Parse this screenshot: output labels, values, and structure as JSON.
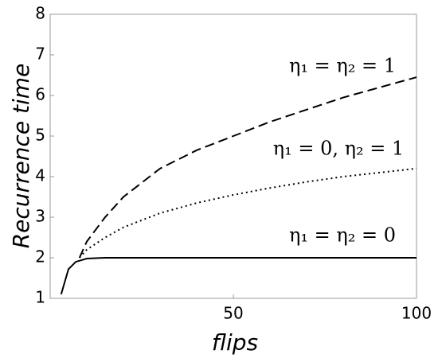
{
  "chart_data": {
    "type": "line",
    "x_label": "flips",
    "y_label": "Recurrence time",
    "xlim": [
      0,
      100
    ],
    "ylim": [
      1,
      8
    ],
    "xticks": [
      50,
      100
    ],
    "yticks": [
      1,
      2,
      3,
      4,
      5,
      6,
      7,
      8
    ],
    "series": [
      {
        "name": "η₁ = η₂ = 1",
        "color": "#000000",
        "dash": "dashed",
        "x": [
          8,
          10,
          15,
          20,
          30,
          40,
          50,
          60,
          70,
          80,
          90,
          100
        ],
        "values": [
          2.0,
          2.4,
          3.0,
          3.5,
          4.2,
          4.65,
          5.0,
          5.35,
          5.65,
          5.95,
          6.2,
          6.45
        ]
      },
      {
        "name": "η₁ = 0, η₂ = 1",
        "color": "#000000",
        "dash": "dotted",
        "x": [
          8,
          10,
          15,
          20,
          30,
          40,
          50,
          60,
          70,
          80,
          90,
          100
        ],
        "values": [
          2.0,
          2.2,
          2.5,
          2.75,
          3.1,
          3.35,
          3.55,
          3.72,
          3.87,
          4.0,
          4.1,
          4.2
        ]
      },
      {
        "name": "η₁ = η₂ = 0",
        "color": "#000000",
        "dash": "solid",
        "x": [
          3,
          5,
          7,
          10,
          15,
          100
        ],
        "values": [
          1.1,
          1.72,
          1.9,
          1.98,
          2.0,
          2.0
        ]
      }
    ]
  }
}
